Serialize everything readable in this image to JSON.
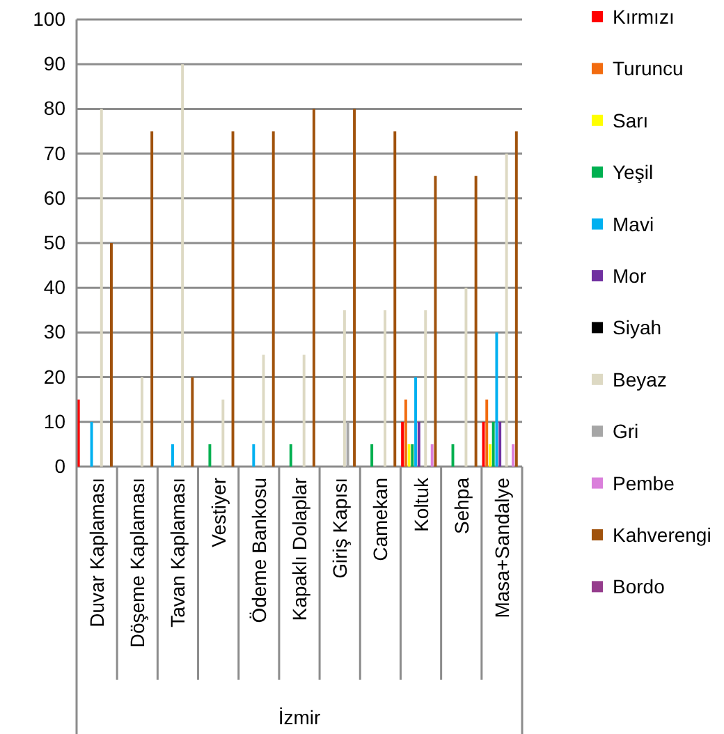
{
  "chart_data": {
    "type": "bar",
    "xlabel": "İzmir",
    "categories": [
      "Duvar Kaplaması",
      "Döşeme Kaplaması",
      "Tavan Kaplaması",
      "Vestiyer",
      "Ödeme Bankosu",
      "Kapaklı Dolaplar",
      "Giriş Kapısı",
      "Camekan",
      "Koltuk",
      "Sehpa",
      "Masa+Sandalye"
    ],
    "series": [
      {
        "name": "Kırmızı",
        "color": "#ff0000",
        "values": [
          15,
          null,
          null,
          null,
          null,
          null,
          null,
          null,
          10,
          null,
          10
        ]
      },
      {
        "name": "Turuncu",
        "color": "#f26b0f",
        "values": [
          null,
          null,
          null,
          null,
          null,
          null,
          null,
          null,
          15,
          null,
          15
        ]
      },
      {
        "name": "Sarı",
        "color": "#ffff00",
        "values": [
          null,
          null,
          null,
          null,
          null,
          null,
          null,
          null,
          5,
          null,
          5
        ]
      },
      {
        "name": "Yeşil",
        "color": "#00b050",
        "values": [
          null,
          null,
          null,
          5,
          null,
          5,
          null,
          5,
          5,
          5,
          10
        ]
      },
      {
        "name": "Mavi",
        "color": "#00b0f0",
        "values": [
          10,
          null,
          5,
          null,
          5,
          null,
          null,
          null,
          20,
          null,
          30
        ]
      },
      {
        "name": "Mor",
        "color": "#7030a0",
        "values": [
          null,
          null,
          null,
          null,
          null,
          null,
          null,
          null,
          10,
          null,
          10
        ]
      },
      {
        "name": "Siyah",
        "color": "#000000",
        "values": [
          null,
          null,
          null,
          null,
          null,
          null,
          null,
          null,
          null,
          null,
          null
        ]
      },
      {
        "name": "Beyaz",
        "color": "#ddd9c3",
        "values": [
          80,
          20,
          90,
          15,
          25,
          25,
          35,
          35,
          35,
          40,
          70
        ]
      },
      {
        "name": "Gri",
        "color": "#a6a6a6",
        "values": [
          null,
          null,
          null,
          null,
          null,
          null,
          10,
          null,
          null,
          null,
          null
        ]
      },
      {
        "name": "Pembe",
        "color": "#da7fdb",
        "values": [
          null,
          null,
          null,
          null,
          null,
          null,
          null,
          null,
          5,
          null,
          5
        ]
      },
      {
        "name": "Kahverengi",
        "color": "#a0520c",
        "values": [
          50,
          75,
          20,
          75,
          75,
          80,
          80,
          75,
          65,
          65,
          75
        ]
      },
      {
        "name": "Bordo",
        "color": "#953c8c",
        "values": [
          null,
          null,
          null,
          null,
          null,
          null,
          null,
          null,
          null,
          null,
          null
        ]
      }
    ],
    "ylim": [
      0,
      100
    ],
    "yticks": [
      0,
      10,
      20,
      30,
      40,
      50,
      60,
      70,
      80,
      90,
      100
    ],
    "grid": "y",
    "legend": "right"
  }
}
